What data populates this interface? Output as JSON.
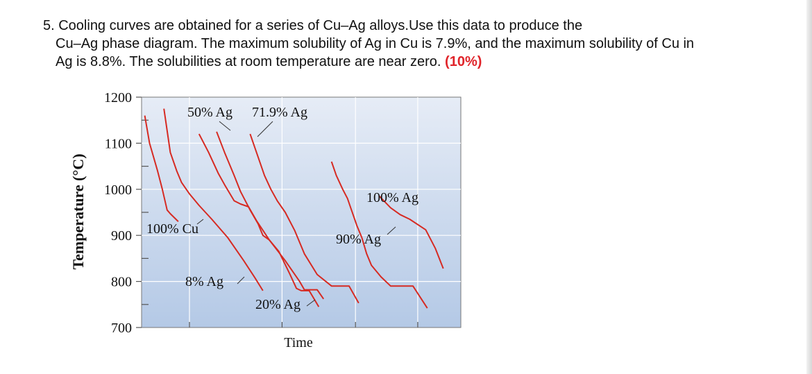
{
  "question": {
    "line1": "5. Cooling curves are obtained for a series of Cu–Ag alloys.Use this data to produce the",
    "line2": "Cu–Ag phase diagram. The maximum solubility of Ag in Cu is 7.9%, and the maximum solubility of Cu in",
    "line3_text": "Ag is 8.8%. The solubilities at room temperature are near zero.",
    "points": "(10%)"
  },
  "colors": {
    "curve": "#d62a22",
    "plot_bg_top": "#e6ecf6",
    "plot_bg_bottom": "#b4c9e6",
    "points": "#e0242a"
  },
  "chart_data": {
    "type": "line",
    "ylabel": "Temperature (°C)",
    "xlabel": "Time",
    "yticks": [
      700,
      800,
      900,
      1000,
      1100,
      1200
    ],
    "ylim": [
      700,
      1200
    ],
    "xlim": [
      0,
      10
    ],
    "grid": true,
    "series": [
      {
        "name": "100% Cu",
        "points": [
          [
            0.1,
            1160
          ],
          [
            0.25,
            1100
          ],
          [
            0.5,
            1040
          ],
          [
            0.65,
            1000
          ],
          [
            0.8,
            955
          ],
          [
            0.9,
            947
          ],
          [
            1.15,
            930
          ]
        ]
      },
      {
        "name": "8% Ag",
        "points": [
          [
            0.7,
            1175
          ],
          [
            0.9,
            1080
          ],
          [
            1.1,
            1040
          ],
          [
            1.25,
            1015
          ],
          [
            1.5,
            990
          ],
          [
            1.8,
            965
          ],
          [
            2.2,
            935
          ],
          [
            2.7,
            895
          ],
          [
            3.2,
            845
          ],
          [
            3.55,
            808
          ],
          [
            3.8,
            780
          ]
        ]
      },
      {
        "name": "50% Ag",
        "points": [
          [
            1.8,
            1120
          ],
          [
            2.1,
            1080
          ],
          [
            2.4,
            1035
          ],
          [
            2.6,
            1010
          ],
          [
            2.9,
            975
          ],
          [
            3.1,
            968
          ],
          [
            3.35,
            962
          ],
          [
            3.6,
            932
          ],
          [
            4.0,
            890
          ],
          [
            4.5,
            845
          ],
          [
            4.95,
            800
          ],
          [
            5.1,
            782
          ],
          [
            5.5,
            782
          ],
          [
            5.7,
            762
          ]
        ]
      },
      {
        "name": "71.9% Ag",
        "points": [
          [
            3.4,
            1120
          ],
          [
            3.6,
            1080
          ],
          [
            3.85,
            1030
          ],
          [
            4.05,
            1000
          ],
          [
            4.25,
            975
          ],
          [
            4.5,
            950
          ],
          [
            4.8,
            910
          ],
          [
            5.1,
            860
          ],
          [
            5.5,
            815
          ],
          [
            5.95,
            790
          ],
          [
            6.5,
            790
          ],
          [
            6.8,
            753
          ]
        ]
      },
      {
        "name": "20% Ag",
        "points": [
          [
            2.35,
            1125
          ],
          [
            2.6,
            1080
          ],
          [
            2.9,
            1030
          ],
          [
            3.1,
            995
          ],
          [
            3.4,
            955
          ],
          [
            3.65,
            925
          ],
          [
            3.8,
            900
          ],
          [
            4.0,
            890
          ],
          [
            4.3,
            865
          ],
          [
            4.65,
            815
          ],
          [
            4.85,
            785
          ],
          [
            5.0,
            780
          ],
          [
            5.25,
            780
          ],
          [
            5.55,
            745
          ]
        ]
      },
      {
        "name": "90% Ag",
        "points": [
          [
            5.95,
            1060
          ],
          [
            6.1,
            1030
          ],
          [
            6.3,
            1000
          ],
          [
            6.45,
            980
          ],
          [
            6.55,
            960
          ],
          [
            6.75,
            920
          ],
          [
            6.9,
            895
          ],
          [
            7.05,
            860
          ],
          [
            7.2,
            835
          ],
          [
            7.5,
            810
          ],
          [
            7.8,
            790
          ],
          [
            8.5,
            790
          ],
          [
            8.95,
            742
          ]
        ]
      },
      {
        "name": "100% Ag",
        "points": [
          [
            7.45,
            985
          ],
          [
            7.8,
            960
          ],
          [
            8.1,
            945
          ],
          [
            8.4,
            935
          ],
          [
            8.9,
            912
          ],
          [
            9.2,
            872
          ],
          [
            9.45,
            828
          ]
        ]
      }
    ],
    "annotations": [
      {
        "text": "50% Ag",
        "target_series": "50% Ag"
      },
      {
        "text": "71.9% Ag",
        "target_series": "71.9% Ag"
      },
      {
        "text": "100% Ag",
        "target_series": "100% Ag"
      },
      {
        "text": "100% Cu",
        "target_series": "100% Cu"
      },
      {
        "text": "90% Ag",
        "target_series": "90% Ag"
      },
      {
        "text": "8% Ag",
        "target_series": "8% Ag"
      },
      {
        "text": "20% Ag",
        "target_series": "20% Ag"
      }
    ]
  }
}
